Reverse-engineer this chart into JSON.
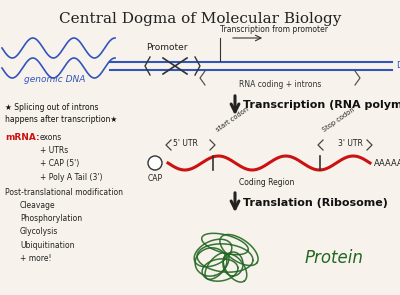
{
  "title": "Central Dogma of Molecular Biology",
  "bg_color": "#f7f3ec",
  "title_color": "#222222",
  "title_fontsize": 11,
  "dna_wave_color": "#3355bb",
  "dna_line_color": "#3355bb",
  "dna_label": "genomic DNA",
  "promoter_label": "Promoter",
  "transcription_label": "Transcription from promoter",
  "dna_right_label": "DNA",
  "rna_coding_label": "RNA coding + introns",
  "transcription_step": "Transcription (RNA polymerase)",
  "translation_step": "Translation (Ribosome)",
  "mrna_color": "#cc1111",
  "mrna_label": "mRNA:",
  "mrna_details": "exons\n+ UTRs\n+ CAP (5')\n+ Poly A Tail (3')",
  "splicing_note": "★ Splicing out of introns\nhappens after transcription★",
  "post_trans_label": "Post-translational modification",
  "post_trans_details": "Cleavage\nPhosphorylation\nGlycolysis\nUbiquitination\n+ more!",
  "protein_label": "Protein",
  "protein_color": "#226622",
  "utr5_label": "5' UTR",
  "utr3_label": "3' UTR",
  "start_codon_label": "start codon",
  "stop_codon_label": "Stop codon",
  "coding_region_label": "Coding Region",
  "cap_label": "CAP",
  "aaaaaa_label": "AAAAAA",
  "arrow_color": "#222222",
  "step_label_color": "#111111",
  "step_fontsize": 9
}
